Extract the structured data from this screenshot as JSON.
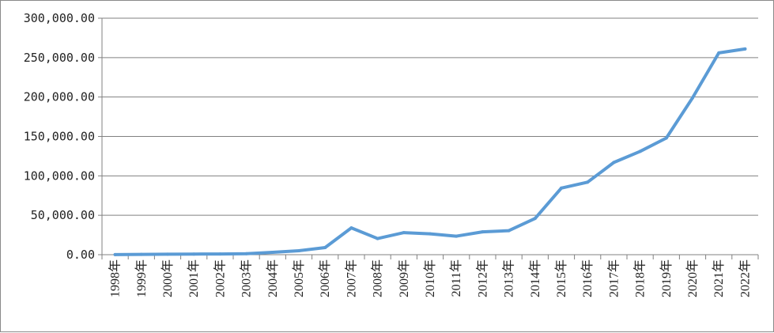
{
  "chart_data": {
    "type": "line",
    "title": "",
    "xlabel": "",
    "ylabel": "",
    "categories": [
      "1998年",
      "1999年",
      "2000年",
      "2001年",
      "2002年",
      "2003年",
      "2004年",
      "2005年",
      "2006年",
      "2007年",
      "2008年",
      "2009年",
      "2010年",
      "2011年",
      "2012年",
      "2013年",
      "2014年",
      "2015年",
      "2016年",
      "2017年",
      "2018年",
      "2019年",
      "2020年",
      "2021年",
      "2022年"
    ],
    "series": [
      {
        "values": [
          100,
          400,
          600,
          800,
          900,
          1200,
          3000,
          5000,
          9000,
          34000,
          20500,
          28000,
          26500,
          23500,
          29000,
          30500,
          46000,
          84500,
          92000,
          117000,
          131000,
          148000,
          199000,
          256000,
          261000
        ]
      }
    ],
    "ylim": [
      0,
      300000
    ],
    "yticks": [
      "0.00",
      "50,000.00",
      "100,000.00",
      "150,000.00",
      "200,000.00",
      "250,000.00",
      "300,000.00"
    ],
    "grid": true,
    "legend": "none",
    "colors": {
      "line": "#5b9bd5",
      "grid": "#808080",
      "axis": "#808080",
      "frame": "#8a8a8a"
    }
  }
}
